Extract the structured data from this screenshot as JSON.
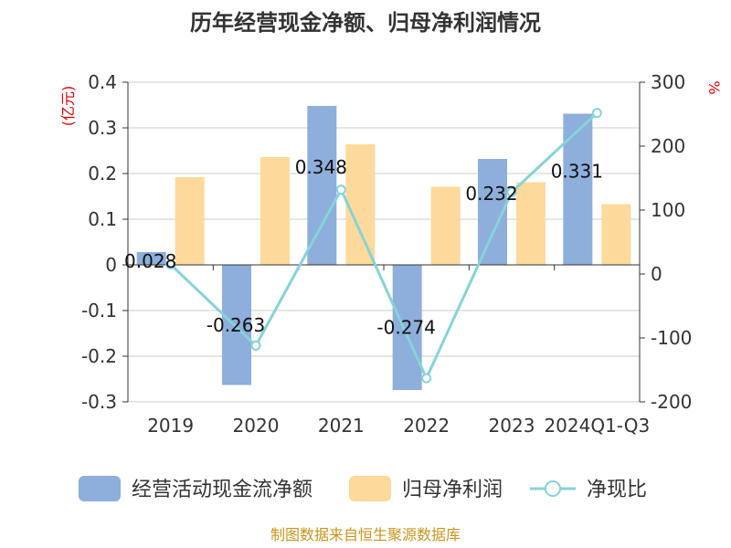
{
  "chart_data": {
    "type": "bar",
    "title": "历年经营现金净额、归母净利润情况",
    "categories": [
      "2019",
      "2020",
      "2021",
      "2022",
      "2023",
      "2024Q1-Q3"
    ],
    "left_axis": {
      "unit": "(亿元)",
      "ylim": [
        -0.3,
        0.4
      ],
      "ticks": [
        0.4,
        0.3,
        0.2,
        0.1,
        0,
        -0.1,
        -0.2,
        -0.3
      ],
      "tick_labels": [
        "0.4",
        "0.3",
        "0.2",
        "0.1",
        "0",
        "-0.1",
        "-0.2",
        "-0.3"
      ]
    },
    "right_axis": {
      "unit": "%",
      "ylim": [
        -200,
        300
      ],
      "ticks": [
        300,
        200,
        100,
        0,
        -100,
        -200
      ],
      "tick_labels": [
        "300",
        "200",
        "100",
        "0",
        "-100",
        "-200"
      ]
    },
    "series": [
      {
        "name": "经营活动现金流净额",
        "type": "bar",
        "axis": "left",
        "color": "#8eaedb",
        "values": [
          0.028,
          -0.263,
          0.348,
          -0.274,
          0.232,
          0.331
        ],
        "labels": [
          "0.028",
          "-0.263",
          "0.348",
          "-0.274",
          "0.232",
          "0.331"
        ]
      },
      {
        "name": "归母净利润",
        "type": "bar",
        "axis": "left",
        "color": "#fdd99b",
        "values": [
          0.192,
          0.236,
          0.264,
          0.171,
          0.181,
          0.133
        ]
      },
      {
        "name": "净现比",
        "type": "line",
        "axis": "right",
        "color": "#86d3d8",
        "values": [
          15,
          -112,
          132,
          -163,
          128,
          252
        ]
      }
    ],
    "grid": true,
    "legend_position": "bottom"
  },
  "source": "制图数据来自恒生聚源数据库"
}
